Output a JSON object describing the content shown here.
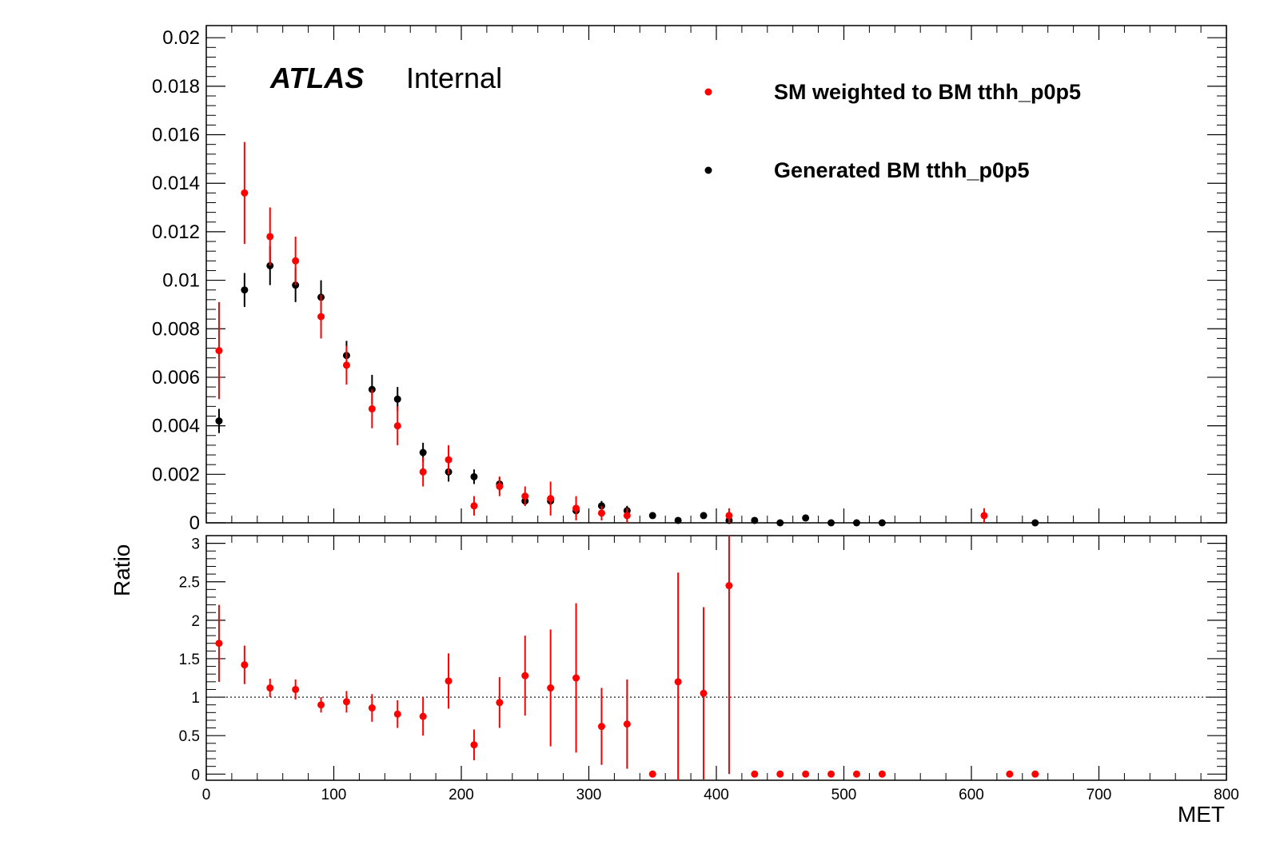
{
  "chart_data": [
    {
      "type": "scatter",
      "panel": "top",
      "x": [
        10,
        30,
        50,
        70,
        90,
        110,
        130,
        150,
        170,
        190,
        210,
        230,
        250,
        270,
        290,
        310,
        330,
        350,
        370,
        390,
        410,
        430,
        450,
        470,
        490,
        510,
        530,
        610,
        650
      ],
      "series": [
        {
          "name": "SM weighted to BM tthh_p0p5",
          "color": "#ff0000",
          "points": [
            {
              "x": 10,
              "y": 0.0071,
              "err": 0.002
            },
            {
              "x": 30,
              "y": 0.0136,
              "err": 0.0021
            },
            {
              "x": 50,
              "y": 0.0118,
              "err": 0.0012
            },
            {
              "x": 70,
              "y": 0.0108,
              "err": 0.001
            },
            {
              "x": 90,
              "y": 0.0085,
              "err": 0.0009
            },
            {
              "x": 110,
              "y": 0.0065,
              "err": 0.0008
            },
            {
              "x": 130,
              "y": 0.0047,
              "err": 0.0008
            },
            {
              "x": 150,
              "y": 0.004,
              "err": 0.0008
            },
            {
              "x": 170,
              "y": 0.0021,
              "err": 0.0006
            },
            {
              "x": 190,
              "y": 0.0026,
              "err": 0.0006
            },
            {
              "x": 210,
              "y": 0.0007,
              "err": 0.0004
            },
            {
              "x": 230,
              "y": 0.0015,
              "err": 0.0004
            },
            {
              "x": 250,
              "y": 0.0011,
              "err": 0.0004
            },
            {
              "x": 270,
              "y": 0.001,
              "err": 0.0007
            },
            {
              "x": 290,
              "y": 0.0006,
              "err": 0.0005
            },
            {
              "x": 310,
              "y": 0.0004,
              "err": 0.0003
            },
            {
              "x": 330,
              "y": 0.0003,
              "err": 0.0003
            },
            {
              "x": 410,
              "y": 0.0003,
              "err": 0.0003
            },
            {
              "x": 610,
              "y": 0.0003,
              "err": 0.0003
            }
          ]
        },
        {
          "name": "Generated BM tthh_p0p5",
          "color": "#000000",
          "points": [
            {
              "x": 10,
              "y": 0.0042,
              "err": 0.0005
            },
            {
              "x": 30,
              "y": 0.0096,
              "err": 0.0007
            },
            {
              "x": 50,
              "y": 0.0106,
              "err": 0.0008
            },
            {
              "x": 70,
              "y": 0.0098,
              "err": 0.0007
            },
            {
              "x": 90,
              "y": 0.0093,
              "err": 0.0007
            },
            {
              "x": 110,
              "y": 0.0069,
              "err": 0.0006
            },
            {
              "x": 130,
              "y": 0.0055,
              "err": 0.0006
            },
            {
              "x": 150,
              "y": 0.0051,
              "err": 0.0005
            },
            {
              "x": 170,
              "y": 0.0029,
              "err": 0.0004
            },
            {
              "x": 190,
              "y": 0.0021,
              "err": 0.0004
            },
            {
              "x": 210,
              "y": 0.0019,
              "err": 0.0003
            },
            {
              "x": 230,
              "y": 0.0016,
              "err": 0.0003
            },
            {
              "x": 250,
              "y": 0.0009,
              "err": 0.0002
            },
            {
              "x": 270,
              "y": 0.0009,
              "err": 0.0002
            },
            {
              "x": 290,
              "y": 0.0005,
              "err": 0.0002
            },
            {
              "x": 310,
              "y": 0.0007,
              "err": 0.0002
            },
            {
              "x": 330,
              "y": 0.0005,
              "err": 0.0002
            },
            {
              "x": 350,
              "y": 0.0003,
              "err": 0.0001
            },
            {
              "x": 370,
              "y": 0.0001,
              "err": 0.0001
            },
            {
              "x": 390,
              "y": 0.0003,
              "err": 0.0001
            },
            {
              "x": 410,
              "y": 0.0001,
              "err": 0.0001
            },
            {
              "x": 430,
              "y": 0.0001,
              "err": 0.0001
            },
            {
              "x": 450,
              "y": 0.0,
              "err": 0.0
            },
            {
              "x": 470,
              "y": 0.0002,
              "err": 0.0001
            },
            {
              "x": 490,
              "y": 0.0,
              "err": 0.0
            },
            {
              "x": 510,
              "y": 0.0,
              "err": 0.0
            },
            {
              "x": 530,
              "y": 0.0,
              "err": 0.0
            },
            {
              "x": 650,
              "y": 0.0,
              "err": 0.0
            }
          ]
        }
      ],
      "xlim": [
        0,
        800
      ],
      "ylim": [
        0,
        0.0205
      ],
      "yticks": [
        "0",
        "0.002",
        "0.004",
        "0.006",
        "0.008",
        "0.01",
        "0.012",
        "0.014",
        "0.016",
        "0.018",
        "0.02"
      ],
      "xlabel": "",
      "ylabel": "",
      "annotations": {
        "atlas": "ATLAS",
        "label": "Internal"
      },
      "legend": "top-right",
      "grid": false
    },
    {
      "type": "scatter",
      "panel": "bottom",
      "series": [
        {
          "name": "",
          "color": "#ff0000",
          "points": [
            {
              "x": 10,
              "y": 1.7,
              "err": 0.5
            },
            {
              "x": 30,
              "y": 1.42,
              "err": 0.25
            },
            {
              "x": 50,
              "y": 1.12,
              "err": 0.12
            },
            {
              "x": 70,
              "y": 1.1,
              "err": 0.13
            },
            {
              "x": 90,
              "y": 0.9,
              "err": 0.1
            },
            {
              "x": 110,
              "y": 0.94,
              "err": 0.14
            },
            {
              "x": 130,
              "y": 0.86,
              "err": 0.18
            },
            {
              "x": 150,
              "y": 0.78,
              "err": 0.18
            },
            {
              "x": 170,
              "y": 0.75,
              "err": 0.25
            },
            {
              "x": 190,
              "y": 1.21,
              "err": 0.36
            },
            {
              "x": 210,
              "y": 0.38,
              "err": 0.2
            },
            {
              "x": 230,
              "y": 0.93,
              "err": 0.33
            },
            {
              "x": 250,
              "y": 1.28,
              "err": 0.52
            },
            {
              "x": 270,
              "y": 1.12,
              "err": 0.76
            },
            {
              "x": 290,
              "y": 1.25,
              "err": 0.97
            },
            {
              "x": 310,
              "y": 0.62,
              "err": 0.5
            },
            {
              "x": 330,
              "y": 0.65,
              "err": 0.58
            },
            {
              "x": 350,
              "y": 0.0,
              "err": 0.0
            },
            {
              "x": 370,
              "y": 1.2,
              "err": 1.42
            },
            {
              "x": 390,
              "y": 1.05,
              "err": 1.12
            },
            {
              "x": 410,
              "y": 2.45,
              "err": 2.45
            },
            {
              "x": 430,
              "y": 0.0,
              "err": 0.0
            },
            {
              "x": 450,
              "y": 0.0,
              "err": 0.0
            },
            {
              "x": 470,
              "y": 0.0,
              "err": 0.0
            },
            {
              "x": 490,
              "y": 0.0,
              "err": 0.0
            },
            {
              "x": 510,
              "y": 0.0,
              "err": 0.0
            },
            {
              "x": 530,
              "y": 0.0,
              "err": 0.0
            },
            {
              "x": 630,
              "y": 0.0,
              "err": 0.0
            },
            {
              "x": 650,
              "y": 0.0,
              "err": 0.0
            }
          ]
        }
      ],
      "xlim": [
        0,
        800
      ],
      "ylim": [
        -0.08,
        3.1
      ],
      "xticks": [
        "0",
        "100",
        "200",
        "300",
        "400",
        "500",
        "600",
        "700",
        "800"
      ],
      "yticks": [
        "0",
        "0.5",
        "1",
        "1.5",
        "2",
        "2.5",
        "3"
      ],
      "reference_line": 1,
      "xlabel": "MET",
      "ylabel": "Ratio",
      "grid": false
    }
  ]
}
